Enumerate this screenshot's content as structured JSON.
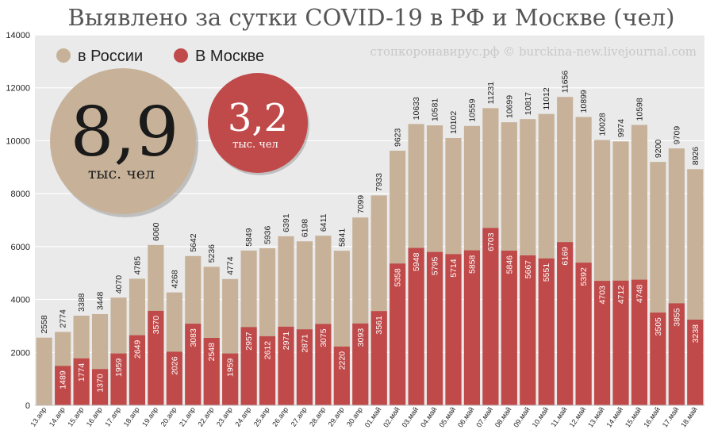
{
  "colors": {
    "russia": "#c7b299",
    "moscow": "#c04a4a",
    "plot_bg": "#eaeaea",
    "grid": "#ffffff"
  },
  "watermark": "стопкоронавирус.рф © burckina-new.livejournal.com",
  "badges": {
    "russia": {
      "value": "8,9",
      "unit": "тыс. чел"
    },
    "moscow": {
      "value": "3,2",
      "unit": "тыс. чел"
    }
  },
  "chart_data": {
    "type": "bar",
    "title": "Выявлено за сутки COVID-19 в РФ и Москве (чел)",
    "xlabel": "",
    "ylabel": "",
    "ylim": [
      0,
      14000
    ],
    "yticks": [
      0,
      2000,
      4000,
      6000,
      8000,
      10000,
      12000,
      14000
    ],
    "grid": true,
    "legend": "top-left",
    "categories": [
      "13.апр",
      "14.апр",
      "15.апр",
      "16.апр",
      "17.апр",
      "18.апр",
      "19.апр",
      "20.апр",
      "21.апр",
      "22.апр",
      "23.апр",
      "24.апр",
      "25.апр",
      "26.апр",
      "27.апр",
      "28.апр",
      "29.апр",
      "30.апр",
      "01.май",
      "02.май",
      "03.май",
      "04.май",
      "05.май",
      "06.май",
      "07.май",
      "08.май",
      "09.май",
      "10.май",
      "11.май",
      "12.май",
      "13.май",
      "14.май",
      "15.май",
      "16.май",
      "17.май",
      "18.май"
    ],
    "series": [
      {
        "name": "в России",
        "color": "#c7b299",
        "values": [
          2558,
          2774,
          3388,
          3448,
          4070,
          4785,
          6060,
          4268,
          5642,
          5236,
          4774,
          5849,
          5936,
          6391,
          6198,
          6411,
          5841,
          7099,
          7933,
          9623,
          10633,
          10581,
          10102,
          10559,
          11231,
          10699,
          10817,
          11012,
          11656,
          10899,
          10028,
          9974,
          10598,
          9200,
          9709,
          8926
        ]
      },
      {
        "name": "В Москве",
        "color": "#c04a4a",
        "values": [
          null,
          1489,
          1774,
          1370,
          1959,
          2649,
          3570,
          2026,
          3083,
          2548,
          1959,
          2957,
          2612,
          2971,
          2871,
          3075,
          2220,
          3093,
          3561,
          5358,
          5948,
          5795,
          5714,
          5858,
          6703,
          5846,
          5667,
          5551,
          6169,
          5392,
          4703,
          4712,
          4748,
          3505,
          3855,
          3238
        ]
      }
    ]
  }
}
